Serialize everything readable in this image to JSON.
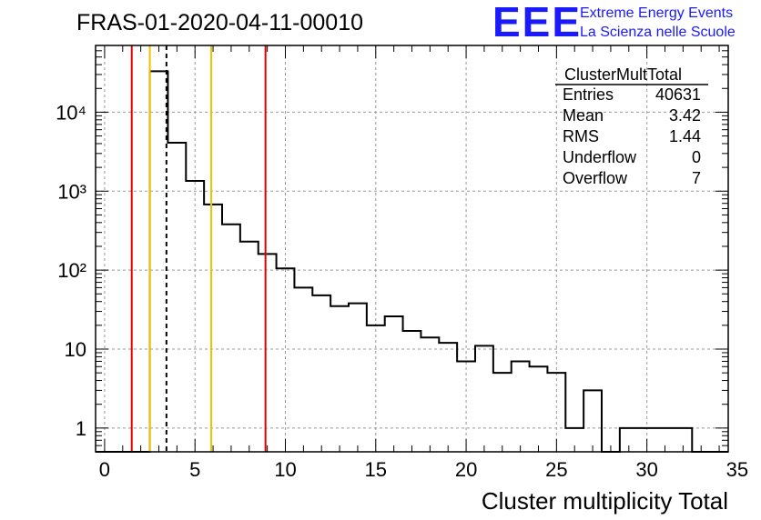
{
  "title": "FRAS-01-2020-04-11-00010",
  "logo": {
    "mark": "EEE",
    "line1": "Extreme Energy Events",
    "line2": "La Scienza nelle Scuole",
    "color": "#1a1aff"
  },
  "stats": {
    "name": "ClusterMultTotal",
    "rows": [
      {
        "label": "Entries",
        "value": "40631"
      },
      {
        "label": "Mean",
        "value": "3.42"
      },
      {
        "label": "RMS",
        "value": "1.44"
      },
      {
        "label": "Underflow",
        "value": "0"
      },
      {
        "label": "Overflow",
        "value": "7"
      }
    ]
  },
  "chart_data": {
    "type": "histogram",
    "xlabel": "Cluster multiplicity Total",
    "ylabel": "",
    "xlim": [
      -0.5,
      34.5
    ],
    "ylim": [
      0.5,
      70000
    ],
    "yscale": "log",
    "grid": true,
    "bin_width": 1,
    "x_ticks": [
      0,
      5,
      10,
      15,
      20,
      25,
      30,
      35
    ],
    "y_ticks": [
      {
        "value": 1,
        "label": "1"
      },
      {
        "value": 10,
        "label": "10"
      },
      {
        "value": 100,
        "label": "10²"
      },
      {
        "value": 1000,
        "label": "10³"
      },
      {
        "value": 10000,
        "label": "10⁴"
      }
    ],
    "bins": [
      {
        "x": 0,
        "count": 0
      },
      {
        "x": 1,
        "count": 0
      },
      {
        "x": 2,
        "count": 0
      },
      {
        "x": 3,
        "count": 33000
      },
      {
        "x": 4,
        "count": 4100
      },
      {
        "x": 5,
        "count": 1350
      },
      {
        "x": 6,
        "count": 680
      },
      {
        "x": 7,
        "count": 380
      },
      {
        "x": 8,
        "count": 230
      },
      {
        "x": 9,
        "count": 160
      },
      {
        "x": 10,
        "count": 105
      },
      {
        "x": 11,
        "count": 60
      },
      {
        "x": 12,
        "count": 48
      },
      {
        "x": 13,
        "count": 35
      },
      {
        "x": 14,
        "count": 38
      },
      {
        "x": 15,
        "count": 20
      },
      {
        "x": 16,
        "count": 26
      },
      {
        "x": 17,
        "count": 17
      },
      {
        "x": 18,
        "count": 14
      },
      {
        "x": 19,
        "count": 12
      },
      {
        "x": 20,
        "count": 7
      },
      {
        "x": 21,
        "count": 11
      },
      {
        "x": 22,
        "count": 5
      },
      {
        "x": 23,
        "count": 7
      },
      {
        "x": 24,
        "count": 6
      },
      {
        "x": 25,
        "count": 5
      },
      {
        "x": 26,
        "count": 1
      },
      {
        "x": 27,
        "count": 3
      },
      {
        "x": 28,
        "count": 0
      },
      {
        "x": 29,
        "count": 1
      },
      {
        "x": 30,
        "count": 1
      },
      {
        "x": 31,
        "count": 1
      },
      {
        "x": 32,
        "count": 1
      },
      {
        "x": 33,
        "count": 0
      },
      {
        "x": 34,
        "count": 0
      }
    ],
    "markers": [
      {
        "x": 1.5,
        "color": "#e00000",
        "style": "solid"
      },
      {
        "x": 2.5,
        "color": "#f0c000",
        "style": "solid"
      },
      {
        "x": 3.42,
        "color": "#000000",
        "style": "dashed"
      },
      {
        "x": 5.9,
        "color": "#f0c000",
        "style": "solid"
      },
      {
        "x": 8.9,
        "color": "#e00000",
        "style": "solid"
      }
    ]
  }
}
